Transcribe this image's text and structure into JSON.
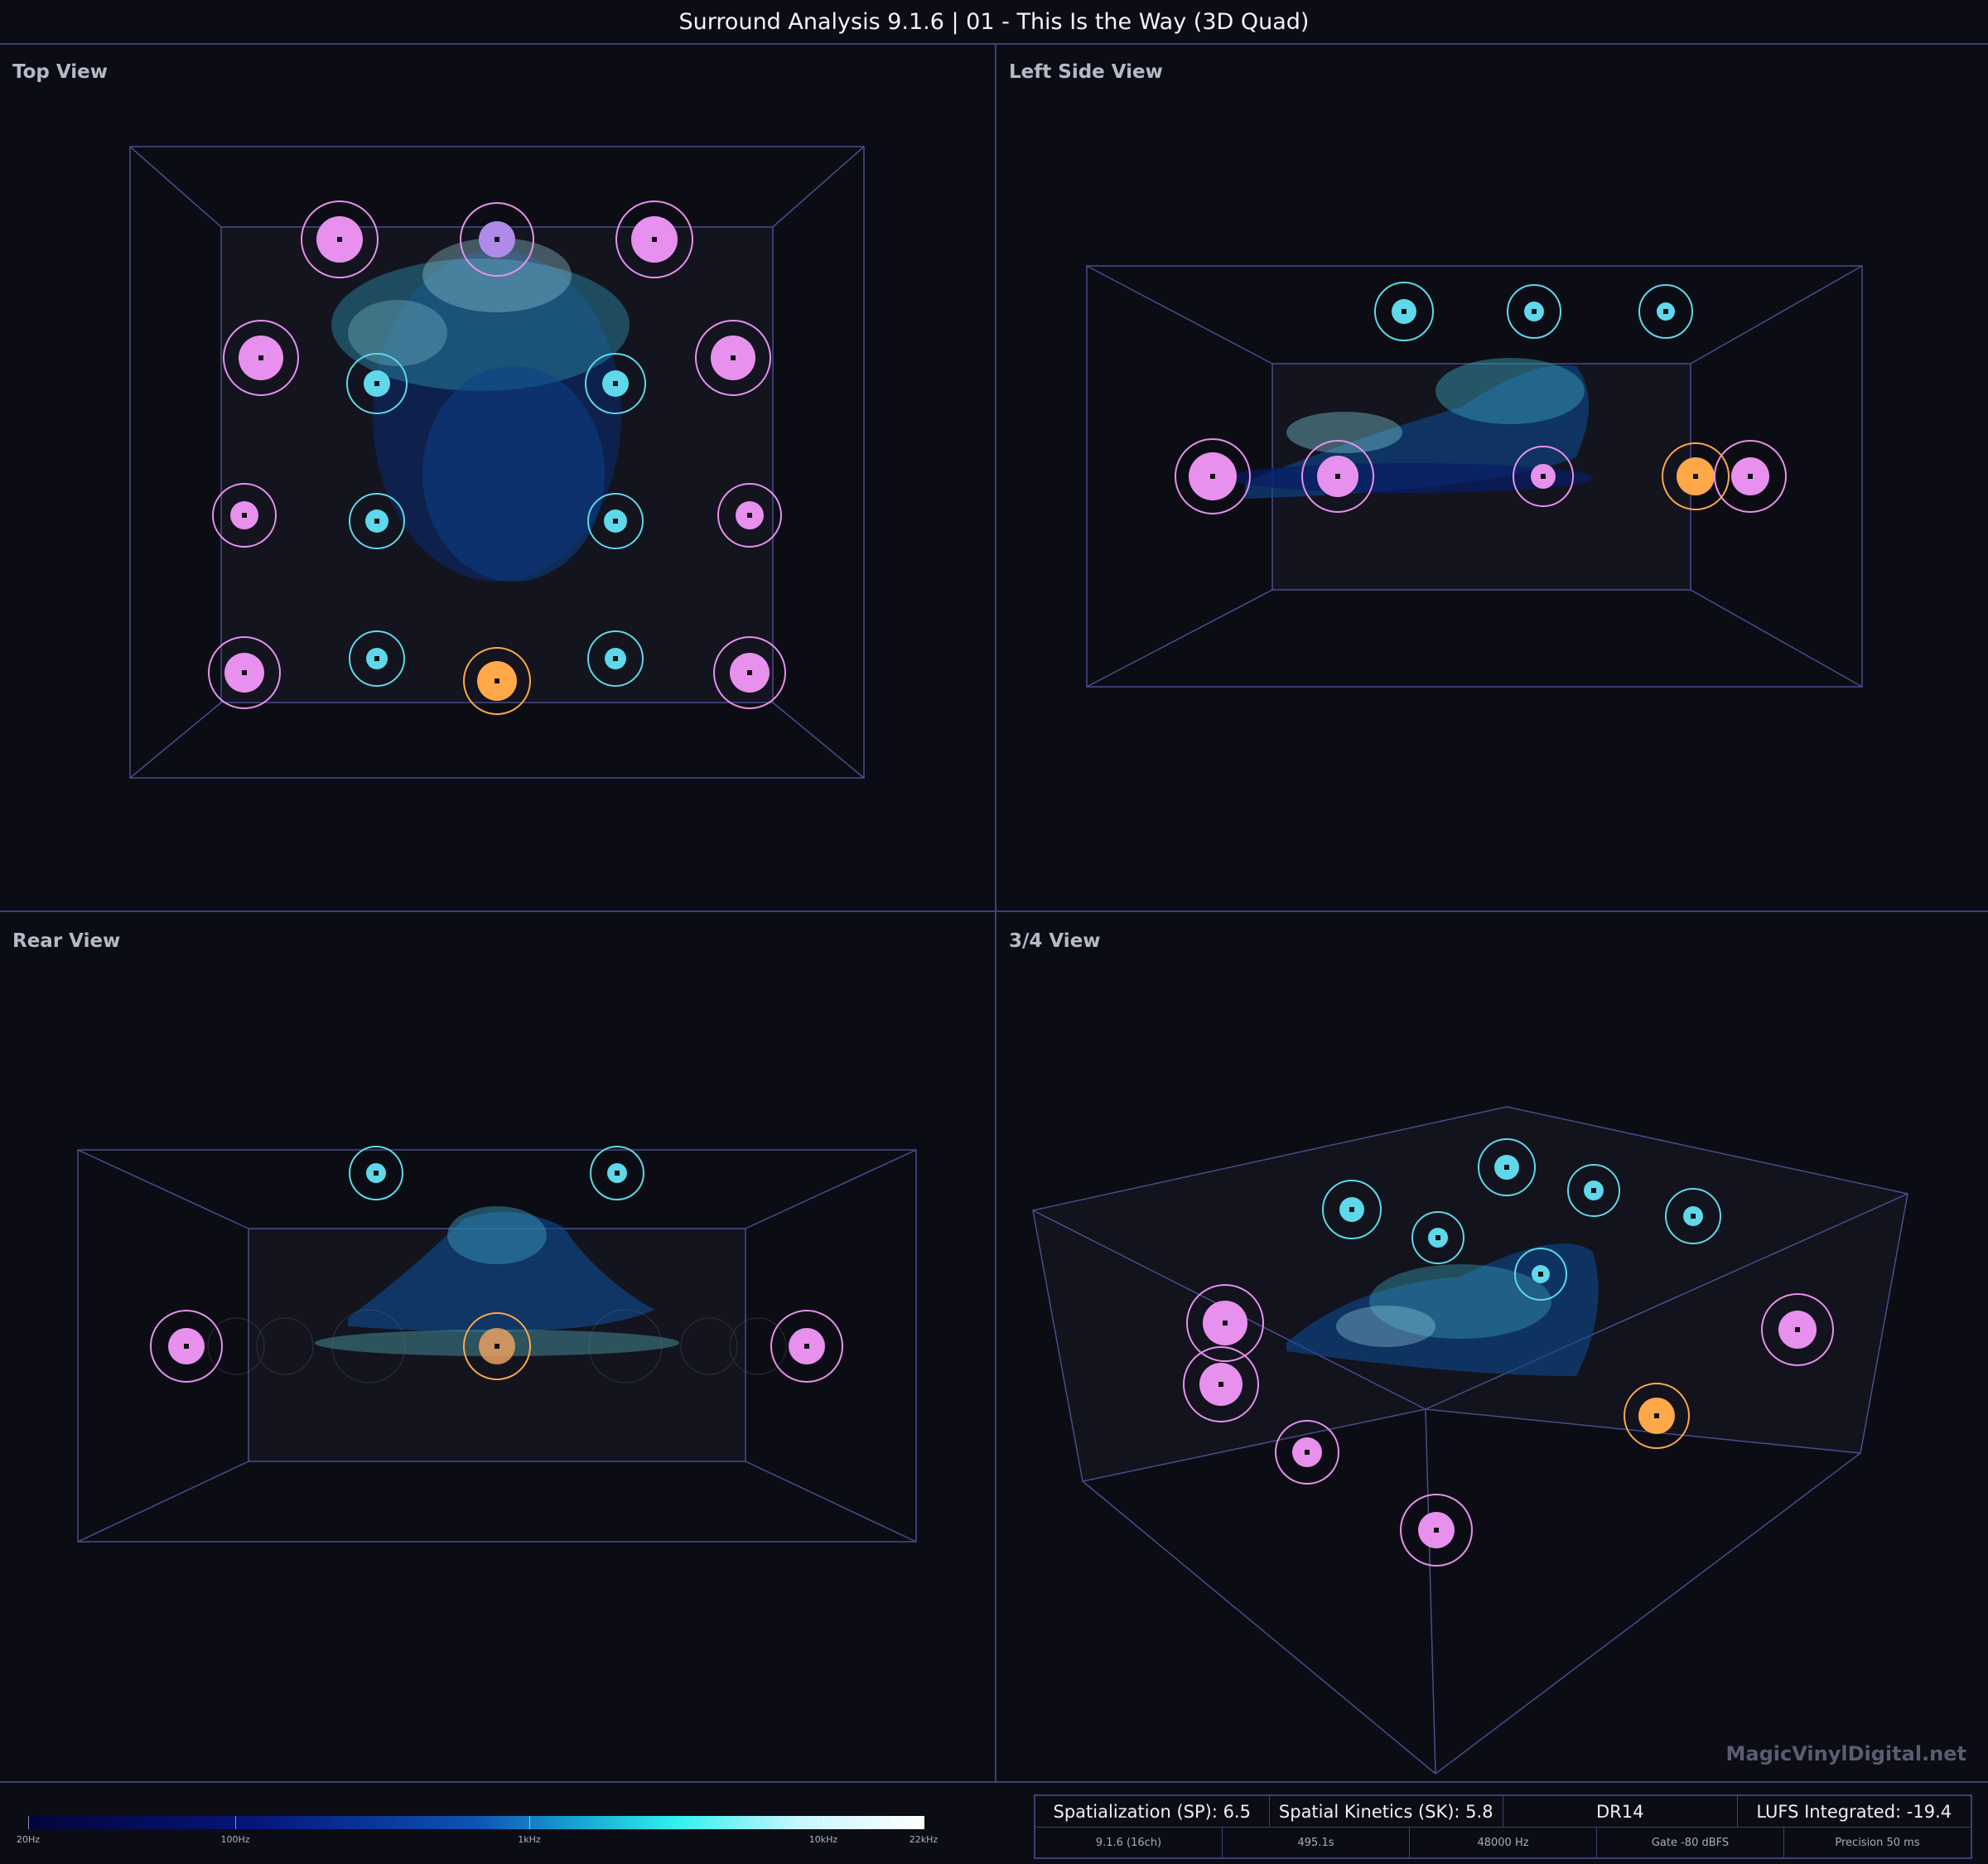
{
  "window_title": "Surround Analysis 9.1.6 | 01 - This Is the Way (3D Quad)",
  "views": [
    {
      "label": "Top View"
    },
    {
      "label": "Left Side View"
    },
    {
      "label": "Rear View"
    },
    {
      "label": "3/4 View"
    }
  ],
  "watermark": "MagicVinylDigital.net",
  "legend": {
    "ticks": [
      "20Hz",
      "100Hz",
      "1kHz",
      "10kHz",
      "22kHz"
    ]
  },
  "stats": {
    "spatialization": "Spatialization (SP): 6.5",
    "spatial_kinetics": "Spatial Kinetics (SK): 5.8",
    "dr": "DR14",
    "lufs": "LUFS Integrated: -19.4",
    "format": "9.1.6 (16ch)",
    "duration": "495.1s",
    "sample_rate": "48000 Hz",
    "gate": "Gate -80 dBFS",
    "precision": "Precision 50 ms"
  },
  "colors": {
    "speaker_ear_level": "#e890ee",
    "speaker_height": "#5ed8ea",
    "speaker_center": "#ffa84a",
    "room_lines": "#4a4c8e",
    "background": "#0c0d14"
  }
}
